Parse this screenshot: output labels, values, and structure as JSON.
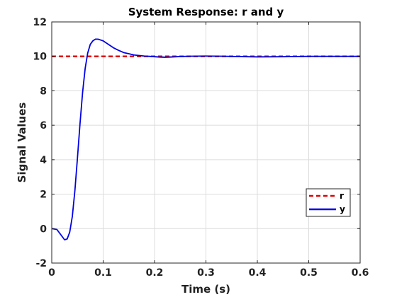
{
  "chart_data": {
    "type": "line",
    "title": "System Response: r and y",
    "xlabel": "Time (s)",
    "ylabel": "Signal Values",
    "xlim": [
      0,
      0.6
    ],
    "ylim": [
      -2,
      12
    ],
    "xticks": [
      "0",
      "0.1",
      "0.2",
      "0.3",
      "0.4",
      "0.5",
      "0.6"
    ],
    "yticks": [
      "-2",
      "0",
      "2",
      "4",
      "6",
      "8",
      "10",
      "12"
    ],
    "grid": true,
    "legend_position": "lower-right",
    "series": [
      {
        "name": "r",
        "color": "#e00000",
        "style": "dashed",
        "x": [
          0,
          0.6
        ],
        "y": [
          10,
          10
        ]
      },
      {
        "name": "y",
        "color": "#0000e6",
        "style": "solid",
        "x": [
          0,
          0.01,
          0.02,
          0.025,
          0.03,
          0.035,
          0.04,
          0.045,
          0.05,
          0.055,
          0.06,
          0.065,
          0.07,
          0.075,
          0.08,
          0.085,
          0.09,
          0.095,
          0.1,
          0.105,
          0.11,
          0.12,
          0.13,
          0.14,
          0.15,
          0.16,
          0.17,
          0.18,
          0.19,
          0.2,
          0.21,
          0.22,
          0.23,
          0.25,
          0.27,
          0.3,
          0.33,
          0.36,
          0.4,
          0.45,
          0.5,
          0.55,
          0.6
        ],
        "y": [
          0,
          -0.05,
          -0.45,
          -0.65,
          -0.6,
          -0.2,
          0.7,
          2.2,
          4.1,
          6.1,
          7.9,
          9.3,
          10.2,
          10.7,
          10.9,
          11.0,
          11.0,
          10.95,
          10.9,
          10.8,
          10.7,
          10.5,
          10.35,
          10.22,
          10.15,
          10.08,
          10.05,
          10.02,
          10.0,
          9.98,
          9.96,
          9.95,
          9.96,
          9.99,
          10.01,
          10.02,
          10.01,
          9.99,
          9.97,
          9.98,
          10.0,
          10.0,
          10.0
        ]
      }
    ]
  }
}
